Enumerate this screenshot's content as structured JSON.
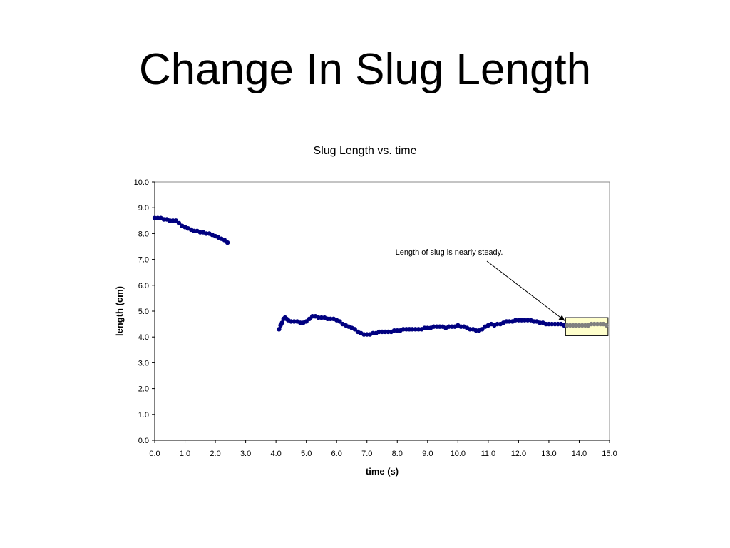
{
  "slide": {
    "title": "Change In Slug Length"
  },
  "chart_data": {
    "type": "scatter",
    "title": "Slug Length vs. time",
    "xlabel": "time (s)",
    "ylabel": "length (cm)",
    "xlim": [
      0,
      15
    ],
    "ylim": [
      0,
      10
    ],
    "xticks": [
      "0.0",
      "1.0",
      "2.0",
      "3.0",
      "4.0",
      "5.0",
      "6.0",
      "7.0",
      "8.0",
      "9.0",
      "10.0",
      "11.0",
      "12.0",
      "13.0",
      "14.0",
      "15.0"
    ],
    "yticks": [
      "0.0",
      "1.0",
      "2.0",
      "3.0",
      "4.0",
      "5.0",
      "6.0",
      "7.0",
      "8.0",
      "9.0",
      "10.0"
    ],
    "grid": false,
    "legend": "none",
    "colors": {
      "series": "#000080",
      "highlight_series": "#808080",
      "highlight_box_fill": "#FFFFCC",
      "highlight_box_border": "#000000"
    },
    "series": [
      {
        "x": [
          0.0,
          0.1,
          0.2,
          0.3,
          0.4,
          0.5,
          0.6,
          0.7,
          0.8,
          0.9,
          1.0,
          1.1,
          1.2,
          1.3,
          1.4,
          1.5,
          1.6,
          1.7,
          1.8,
          1.9,
          2.0,
          2.1,
          2.2,
          2.3,
          2.4
        ],
        "y": [
          8.6,
          8.6,
          8.6,
          8.55,
          8.55,
          8.5,
          8.5,
          8.5,
          8.4,
          8.3,
          8.25,
          8.2,
          8.15,
          8.1,
          8.1,
          8.05,
          8.05,
          8.0,
          8.0,
          7.95,
          7.9,
          7.85,
          7.8,
          7.75,
          7.65
        ]
      },
      {
        "x": [
          4.1,
          4.15,
          4.2,
          4.25,
          4.3,
          4.35,
          4.4,
          4.5,
          4.6,
          4.7,
          4.8,
          4.9,
          5.0,
          5.1,
          5.2,
          5.3,
          5.4,
          5.5,
          5.6,
          5.7,
          5.8,
          5.9,
          6.0,
          6.1,
          6.2,
          6.3,
          6.4,
          6.5,
          6.6,
          6.7,
          6.8,
          6.9,
          7.0,
          7.1,
          7.2,
          7.3,
          7.4,
          7.5,
          7.6,
          7.7,
          7.8,
          7.9,
          8.0,
          8.1,
          8.2,
          8.3,
          8.4,
          8.5,
          8.6,
          8.7,
          8.8,
          8.9,
          9.0,
          9.1,
          9.2,
          9.3,
          9.4,
          9.5,
          9.6,
          9.7,
          9.8,
          9.9,
          10.0,
          10.1,
          10.2,
          10.3,
          10.4,
          10.5,
          10.6,
          10.7,
          10.8,
          10.9,
          11.0,
          11.1,
          11.2,
          11.3,
          11.4,
          11.5,
          11.6,
          11.7,
          11.8,
          11.9,
          12.0,
          12.1,
          12.2,
          12.3,
          12.4,
          12.5,
          12.6,
          12.7,
          12.8,
          12.9,
          13.0,
          13.1,
          13.2,
          13.3,
          13.4,
          13.5,
          13.6
        ],
        "y": [
          4.3,
          4.45,
          4.55,
          4.7,
          4.75,
          4.7,
          4.65,
          4.6,
          4.6,
          4.6,
          4.55,
          4.55,
          4.6,
          4.7,
          4.8,
          4.8,
          4.75,
          4.75,
          4.75,
          4.7,
          4.7,
          4.7,
          4.65,
          4.6,
          4.5,
          4.45,
          4.4,
          4.35,
          4.3,
          4.2,
          4.15,
          4.1,
          4.1,
          4.1,
          4.15,
          4.15,
          4.2,
          4.2,
          4.2,
          4.2,
          4.2,
          4.25,
          4.25,
          4.25,
          4.3,
          4.3,
          4.3,
          4.3,
          4.3,
          4.3,
          4.3,
          4.35,
          4.35,
          4.35,
          4.4,
          4.4,
          4.4,
          4.4,
          4.35,
          4.4,
          4.4,
          4.4,
          4.45,
          4.4,
          4.4,
          4.35,
          4.3,
          4.3,
          4.25,
          4.25,
          4.3,
          4.4,
          4.45,
          4.5,
          4.45,
          4.5,
          4.5,
          4.55,
          4.6,
          4.6,
          4.6,
          4.65,
          4.65,
          4.65,
          4.65,
          4.65,
          4.65,
          4.6,
          4.6,
          4.55,
          4.55,
          4.5,
          4.5,
          4.5,
          4.5,
          4.5,
          4.5,
          4.45,
          4.45
        ]
      },
      {
        "x": [
          13.6,
          13.7,
          13.8,
          13.9,
          14.0,
          14.1,
          14.2,
          14.3,
          14.4,
          14.5,
          14.6,
          14.7,
          14.8,
          14.9
        ],
        "y": [
          4.45,
          4.45,
          4.45,
          4.45,
          4.45,
          4.45,
          4.45,
          4.45,
          4.5,
          4.5,
          4.5,
          4.5,
          4.5,
          4.45
        ]
      }
    ],
    "annotation": {
      "text": "Length of slug is nearly steady.",
      "target": [
        13.55,
        4.6
      ]
    },
    "highlight_box": {
      "xlim": [
        13.55,
        14.95
      ],
      "ylim": [
        4.05,
        4.75
      ]
    }
  }
}
